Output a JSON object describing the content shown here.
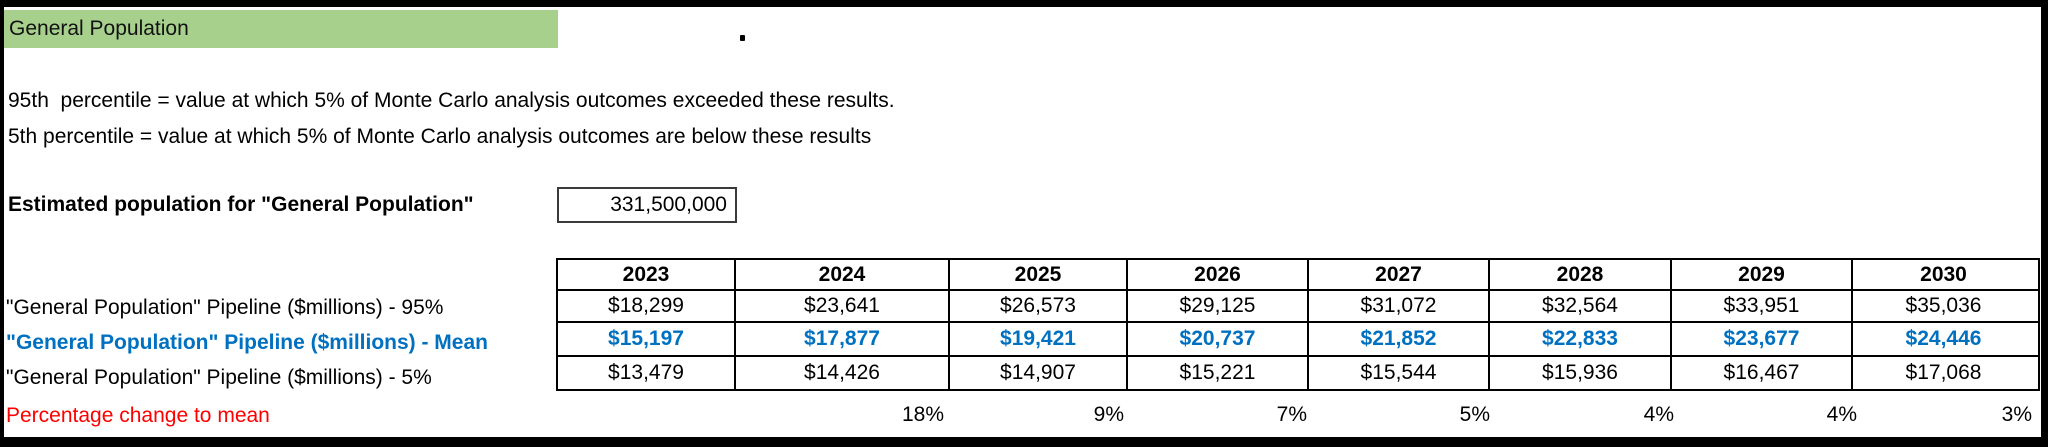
{
  "title": "General Population",
  "stray_character": ".",
  "notes": {
    "line1": "95th  percentile = value at which 5% of Monte Carlo analysis outcomes exceeded these results.",
    "line2": "5th percentile = value at which 5% of Monte Carlo analysis outcomes are below these results"
  },
  "population": {
    "label": "Estimated population for \"General Population\"",
    "value": "331,500,000"
  },
  "table": {
    "years": [
      "2023",
      "2024",
      "2025",
      "2026",
      "2027",
      "2028",
      "2029",
      "2030"
    ],
    "rows": [
      {
        "label": "\"General Population\" Pipeline ($millions) - 95%",
        "series": "95th percentile",
        "values": [
          "$18,299",
          "$23,641",
          "$26,573",
          "$29,125",
          "$31,072",
          "$32,564",
          "$33,951",
          "$35,036"
        ]
      },
      {
        "label": "\"General Population\" Pipeline ($millions) - Mean",
        "series": "Mean",
        "values": [
          "$15,197",
          "$17,877",
          "$19,421",
          "$20,737",
          "$21,852",
          "$22,833",
          "$23,677",
          "$24,446"
        ]
      },
      {
        "label": "\"General Population\" Pipeline ($millions) - 5%",
        "series": "5th percentile",
        "values": [
          "$13,479",
          "$14,426",
          "$14,907",
          "$15,221",
          "$15,544",
          "$15,936",
          "$16,467",
          "$17,068"
        ]
      }
    ],
    "pct": {
      "label": "Percentage change to mean",
      "values": [
        "",
        "18%",
        "9%",
        "7%",
        "5%",
        "4%",
        "4%",
        "3%"
      ]
    }
  },
  "colors": {
    "highlight_green": "#a8d08d",
    "mean_blue": "#0070c0",
    "pct_label_red": "#ff0000",
    "border_black": "#000000"
  }
}
